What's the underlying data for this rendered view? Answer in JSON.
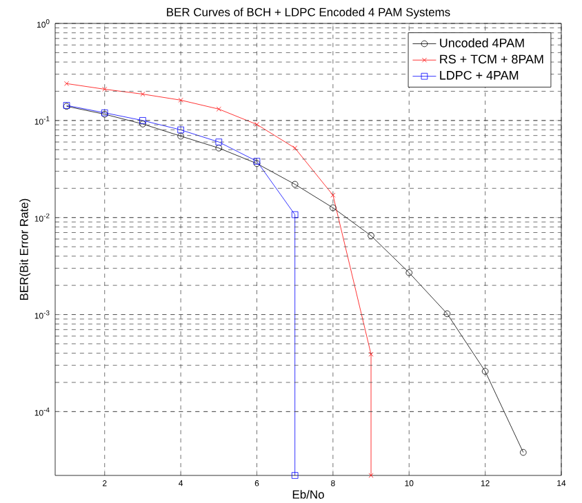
{
  "chart_data": {
    "type": "line",
    "title": "BER Curves of BCH + LDPC Encoded 4 PAM Systems",
    "xlabel": "Eb/No",
    "ylabel": "BER(Bit Error Rate)",
    "log": "y",
    "grid": true,
    "legend": "top right",
    "line_style": "solid",
    "xlim": [
      0.7,
      14
    ],
    "ylim": [
      2.2e-05,
      1
    ],
    "xticks": [
      2,
      4,
      6,
      8,
      10,
      12,
      14
    ],
    "yticks": [
      {
        "value": 0.0001,
        "label": "10$^{-4}$"
      },
      {
        "value": 0.001,
        "label": "10$^{-3}$"
      },
      {
        "value": 0.01,
        "label": "10$^{-2}$"
      },
      {
        "value": 0.1,
        "label": "10$^{-1}$"
      },
      {
        "value": 1,
        "label": "10$^{0}$"
      }
    ],
    "series": [
      {
        "name": "Uncoded 4PAM",
        "color": "#000000",
        "marker": "circle",
        "x": [
          1,
          2,
          3,
          4,
          5,
          6,
          7,
          8,
          9,
          10,
          11,
          12,
          13
        ],
        "values": [
          0.14,
          0.116,
          0.092,
          0.069,
          0.052,
          0.036,
          0.022,
          0.0126,
          0.0065,
          0.0027,
          0.00102,
          0.00026,
          3.8e-05
        ]
      },
      {
        "name": "RS + TCM + 8PAM",
        "color": "#ff0000",
        "marker": "cross",
        "x": [
          1,
          2,
          3,
          4,
          5,
          6,
          7,
          8,
          9,
          9
        ],
        "values": [
          0.24,
          0.21,
          0.187,
          0.162,
          0.131,
          0.091,
          0.052,
          0.017,
          0.00039,
          2.2e-05
        ]
      },
      {
        "name": "LDPC + 4PAM",
        "color": "#0000ff",
        "marker": "square",
        "x": [
          1,
          2,
          3,
          4,
          5,
          6,
          7,
          7
        ],
        "values": [
          0.143,
          0.12,
          0.1,
          0.08,
          0.06,
          0.038,
          0.0107,
          2.2e-05
        ]
      }
    ]
  }
}
